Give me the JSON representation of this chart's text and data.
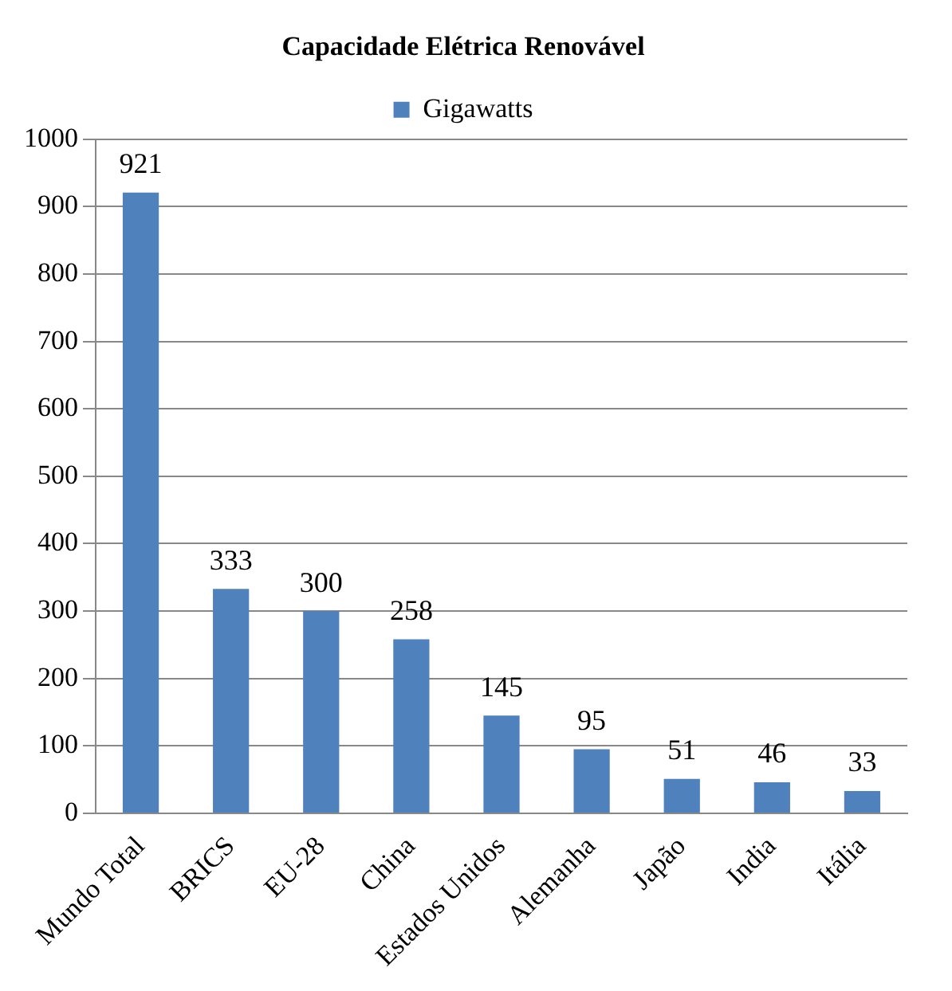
{
  "chart_data": {
    "type": "bar",
    "title": "Capacidade Elétrica Renovável",
    "categories": [
      "Mundo Total",
      "BRICS",
      "EU-28",
      "China",
      "Estados Unidos",
      "Alemanha",
      "Japão",
      "India",
      "Itália"
    ],
    "series": [
      {
        "name": "Gigawatts",
        "color": "#4f81bd",
        "values": [
          921,
          333,
          300,
          258,
          145,
          95,
          51,
          46,
          33
        ]
      }
    ],
    "ylim": [
      0,
      1000
    ],
    "yticks": [
      0,
      100,
      200,
      300,
      400,
      500,
      600,
      700,
      800,
      900,
      1000
    ],
    "grid": "y",
    "legend": "top",
    "data_labels": true
  }
}
